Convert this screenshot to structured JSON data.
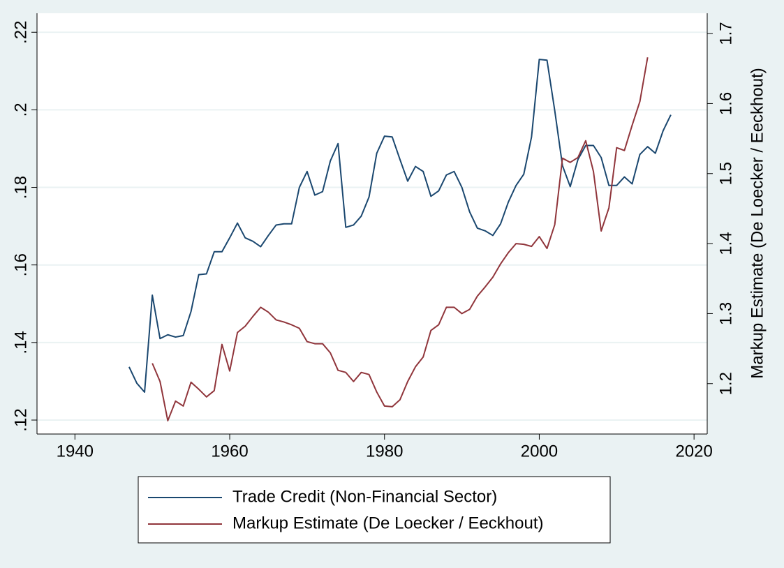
{
  "chart_data": {
    "type": "line",
    "y2label": "Markup Estimate (De Loecker / Eeckhout)",
    "x": [
      1947,
      1948,
      1949,
      1950,
      1951,
      1952,
      1953,
      1954,
      1955,
      1956,
      1957,
      1958,
      1959,
      1960,
      1961,
      1962,
      1963,
      1964,
      1965,
      1966,
      1967,
      1968,
      1969,
      1970,
      1971,
      1972,
      1973,
      1974,
      1975,
      1976,
      1977,
      1978,
      1979,
      1980,
      1981,
      1982,
      1983,
      1984,
      1985,
      1986,
      1987,
      1988,
      1989,
      1990,
      1991,
      1992,
      1993,
      1994,
      1995,
      1996,
      1997,
      1998,
      1999,
      2000,
      2001,
      2002,
      2003,
      2004,
      2005,
      2006,
      2007,
      2008,
      2009,
      2010,
      2011,
      2012,
      2013,
      2014,
      2015,
      2016,
      2017
    ],
    "series": [
      {
        "name": "Trade Credit (Non-Financial Sector)",
        "color": "#1a476f",
        "axis": "y",
        "values": [
          0.1337,
          0.1295,
          0.1272,
          0.1522,
          0.141,
          0.142,
          0.1414,
          0.1418,
          0.148,
          0.1575,
          0.1577,
          0.1634,
          0.1634,
          0.167,
          0.1708,
          0.167,
          0.1661,
          0.1647,
          0.1676,
          0.1703,
          0.1706,
          0.1706,
          0.18,
          0.1841,
          0.178,
          0.1789,
          0.1868,
          0.1913,
          0.1697,
          0.1703,
          0.1726,
          0.1775,
          0.1888,
          0.1932,
          0.193,
          0.1872,
          0.1816,
          0.1854,
          0.1841,
          0.1777,
          0.1791,
          0.1832,
          0.1841,
          0.18,
          0.1737,
          0.1695,
          0.1688,
          0.1676,
          0.1706,
          0.1762,
          0.1805,
          0.1834,
          0.193,
          0.213,
          0.2128,
          0.1998,
          0.1856,
          0.1802,
          0.1872,
          0.1908,
          0.1908,
          0.1877,
          0.1805,
          0.1805,
          0.1827,
          0.1809,
          0.1885,
          0.1905,
          0.1888,
          0.1946,
          0.1987
        ]
      },
      {
        "name": "Markup Estimate (De Loecker / Eeckhout)",
        "color": "#90353b",
        "axis": "y2",
        "values": [
          null,
          null,
          null,
          1.229,
          1.203,
          1.147,
          1.175,
          1.168,
          1.202,
          1.192,
          1.181,
          1.19,
          1.256,
          1.218,
          1.273,
          1.282,
          1.296,
          1.309,
          1.302,
          1.291,
          1.288,
          1.284,
          1.279,
          1.26,
          1.257,
          1.257,
          1.244,
          1.219,
          1.216,
          1.203,
          1.216,
          1.213,
          1.188,
          1.168,
          1.167,
          1.177,
          1.203,
          1.224,
          1.238,
          1.276,
          1.284,
          1.309,
          1.309,
          1.3,
          1.306,
          1.325,
          1.338,
          1.352,
          1.371,
          1.387,
          1.4,
          1.399,
          1.396,
          1.41,
          1.393,
          1.427,
          1.522,
          1.516,
          1.523,
          1.547,
          1.503,
          1.418,
          1.451,
          1.537,
          1.533,
          1.569,
          1.603,
          1.666,
          null,
          null,
          null
        ]
      }
    ],
    "xlim": [
      1935.1,
      2021.7
    ],
    "xticks": [
      1940,
      1960,
      1980,
      2000,
      2020
    ],
    "ylim": [
      0.1164,
      0.2249
    ],
    "yticks": [
      {
        "value": 0.12,
        "label": ".12"
      },
      {
        "value": 0.14,
        "label": ".14"
      },
      {
        "value": 0.16,
        "label": ".16"
      },
      {
        "value": 0.18,
        "label": ".18"
      },
      {
        "value": 0.2,
        "label": ".2"
      },
      {
        "value": 0.22,
        "label": ".22"
      }
    ],
    "y2lim": [
      1.128,
      1.729
    ],
    "y2ticks": [
      1.2,
      1.3,
      1.4,
      1.5,
      1.6,
      1.7
    ],
    "grid": true,
    "legend": "bottom"
  }
}
